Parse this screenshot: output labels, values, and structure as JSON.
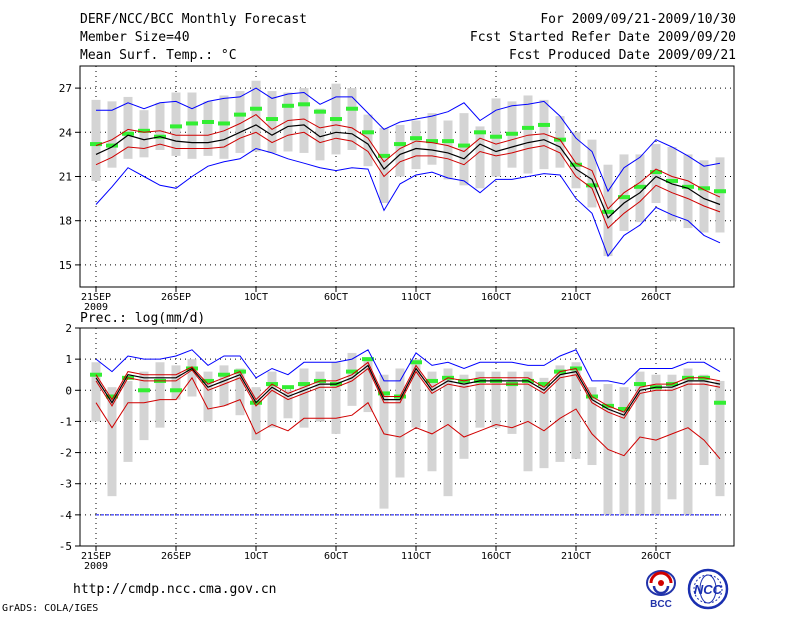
{
  "header": {
    "title": "DERF/NCC/BCC Monthly Forecast",
    "member_size": "Member Size=40",
    "variable": "Mean Surf. Temp.: °C",
    "period": "For 2009/09/21-2009/10/30",
    "started": "Fcst Started Refer Date 2009/09/20",
    "produced": "Fcst Produced Date 2009/09/21"
  },
  "footer": {
    "url": "http://cmdp.ncc.cma.gov.cn",
    "credit": "GrADS: COLA/IGES",
    "logo_bcc": "BCC",
    "logo_ncc": "NCC"
  },
  "colors": {
    "box": "#d4d4d4",
    "ensemble_mean": "#000000",
    "members_red": "#d00000",
    "extremes_blue": "#0000ff",
    "median_green": "#33ee33",
    "grid": "#000000"
  },
  "chart_data": [
    {
      "type": "line",
      "title": "Mean Surf. Temp.: °C",
      "ylabel": "Mean Surf. Temp.: °C",
      "ylim": [
        13.5,
        28.5
      ],
      "yticks": [
        15,
        18,
        21,
        24,
        27
      ],
      "x_days": 40,
      "xticks": [
        {
          "day": 0,
          "label": "21SEP",
          "sub": "2009"
        },
        {
          "day": 5,
          "label": "26SEP",
          "sub": ""
        },
        {
          "day": 10,
          "label": "1OCT",
          "sub": ""
        },
        {
          "day": 15,
          "label": "6OCT",
          "sub": ""
        },
        {
          "day": 20,
          "label": "11OCT",
          "sub": ""
        },
        {
          "day": 25,
          "label": "16OCT",
          "sub": ""
        },
        {
          "day": 30,
          "label": "21OCT",
          "sub": ""
        },
        {
          "day": 35,
          "label": "26OCT",
          "sub": ""
        }
      ],
      "series": [
        {
          "name": "ensemble mean",
          "values": [
            22.5,
            23.0,
            23.8,
            23.5,
            23.7,
            23.4,
            23.3,
            23.3,
            23.5,
            24.0,
            24.5,
            23.8,
            24.4,
            24.5,
            23.7,
            24.0,
            23.9,
            23.2,
            21.5,
            22.5,
            22.9,
            22.8,
            22.6,
            22.2,
            23.2,
            22.7,
            23.0,
            23.3,
            23.5,
            23.0,
            21.5,
            20.8,
            18.2,
            19.2,
            19.9,
            21.0,
            20.5,
            20.2,
            19.5,
            19.1
          ]
        },
        {
          "name": "member high",
          "values": [
            23.1,
            23.5,
            24.2,
            24.0,
            24.1,
            23.8,
            23.8,
            23.8,
            24.1,
            24.6,
            25.2,
            24.2,
            24.8,
            24.9,
            24.3,
            24.5,
            24.3,
            23.6,
            22.0,
            22.9,
            23.4,
            23.3,
            23.1,
            22.7,
            23.6,
            23.2,
            23.5,
            23.8,
            23.9,
            23.5,
            21.9,
            21.4,
            18.8,
            19.9,
            20.6,
            21.5,
            21.0,
            20.7,
            20.1,
            19.6
          ]
        },
        {
          "name": "member low",
          "values": [
            21.8,
            22.3,
            23.0,
            22.9,
            23.2,
            22.9,
            22.9,
            22.9,
            23.0,
            23.6,
            24.0,
            23.3,
            23.8,
            24.0,
            23.3,
            23.6,
            23.4,
            22.7,
            21.0,
            22.0,
            22.4,
            22.4,
            22.2,
            21.8,
            22.7,
            22.4,
            22.6,
            22.9,
            23.1,
            22.6,
            21.0,
            20.2,
            17.5,
            18.5,
            19.3,
            20.4,
            19.9,
            19.5,
            19.0,
            18.6
          ]
        },
        {
          "name": "max",
          "values": [
            25.5,
            25.5,
            26.0,
            25.6,
            26.0,
            26.1,
            25.6,
            26.1,
            26.3,
            26.4,
            27.0,
            26.3,
            26.6,
            26.7,
            25.9,
            26.4,
            26.4,
            25.3,
            24.2,
            24.7,
            24.9,
            25.1,
            25.4,
            26.0,
            24.8,
            25.5,
            25.8,
            25.9,
            26.1,
            25.1,
            23.6,
            22.7,
            20.0,
            21.6,
            22.3,
            23.5,
            23.0,
            22.4,
            21.7,
            21.9
          ]
        },
        {
          "name": "min",
          "values": [
            19.1,
            20.3,
            21.6,
            21.0,
            20.4,
            20.2,
            21.0,
            21.7,
            22.0,
            22.2,
            22.9,
            22.6,
            22.2,
            21.9,
            21.6,
            21.4,
            21.6,
            21.5,
            18.7,
            20.5,
            21.1,
            21.3,
            20.9,
            20.7,
            19.9,
            20.8,
            20.8,
            21.0,
            21.2,
            21.1,
            19.5,
            18.5,
            15.6,
            17.0,
            17.7,
            18.9,
            18.4,
            18.0,
            17.0,
            16.5
          ]
        },
        {
          "name": "median",
          "values": [
            23.2,
            23.1,
            23.9,
            24.1,
            23.7,
            24.4,
            24.6,
            24.7,
            24.6,
            25.2,
            25.6,
            24.9,
            25.8,
            25.9,
            25.4,
            24.9,
            25.6,
            24.0,
            22.4,
            23.2,
            23.6,
            23.4,
            23.4,
            23.1,
            24.0,
            23.7,
            23.9,
            24.3,
            24.5,
            23.5,
            21.8,
            20.4,
            18.6,
            19.6,
            20.3,
            21.3,
            20.7,
            20.3,
            20.2,
            20.0
          ]
        },
        {
          "name": "box high",
          "values": [
            26.2,
            26.1,
            26.4,
            25.5,
            26.0,
            26.7,
            26.7,
            26.1,
            26.5,
            26.8,
            27.5,
            26.8,
            26.7,
            27.0,
            25.6,
            27.3,
            27.0,
            25.2,
            24.3,
            24.5,
            24.8,
            25.3,
            24.8,
            25.3,
            24.4,
            26.3,
            26.1,
            26.5,
            26.2,
            25.1,
            24.0,
            23.5,
            21.8,
            22.5,
            22.5,
            23.2,
            23.0,
            22.5,
            22.1,
            22.3
          ]
        },
        {
          "name": "box low",
          "values": [
            20.7,
            21.6,
            22.2,
            22.3,
            22.8,
            22.4,
            22.2,
            22.4,
            22.2,
            22.6,
            22.7,
            22.6,
            22.7,
            22.6,
            22.1,
            22.5,
            22.8,
            21.7,
            19.2,
            21.0,
            21.5,
            21.8,
            20.8,
            20.4,
            20.2,
            21.0,
            21.6,
            21.2,
            21.5,
            21.6,
            20.2,
            18.9,
            15.6,
            17.3,
            17.9,
            19.2,
            18.0,
            17.5,
            17.2,
            17.2
          ]
        }
      ]
    },
    {
      "type": "line",
      "title": "Prec.: log(mm/d)",
      "ylabel": "Prec.: log(mm/d)",
      "ylim": [
        -5,
        2
      ],
      "yticks": [
        -5,
        -4,
        -3,
        -2,
        -1,
        0,
        1,
        2
      ],
      "x_days": 40,
      "reference_line": -4,
      "xticks": [
        {
          "day": 0,
          "label": "21SEP",
          "sub": "2009"
        },
        {
          "day": 5,
          "label": "26SEP",
          "sub": ""
        },
        {
          "day": 10,
          "label": "1OCT",
          "sub": ""
        },
        {
          "day": 15,
          "label": "6OCT",
          "sub": ""
        },
        {
          "day": 20,
          "label": "11OCT",
          "sub": ""
        },
        {
          "day": 25,
          "label": "16OCT",
          "sub": ""
        },
        {
          "day": 30,
          "label": "21OCT",
          "sub": ""
        },
        {
          "day": 35,
          "label": "26OCT",
          "sub": ""
        }
      ],
      "series": [
        {
          "name": "ensemble mean",
          "values": [
            0.4,
            -0.4,
            0.5,
            0.4,
            0.4,
            0.4,
            0.7,
            0.1,
            0.3,
            0.5,
            -0.4,
            0.1,
            -0.2,
            0.0,
            0.2,
            0.2,
            0.4,
            0.8,
            -0.3,
            -0.3,
            0.7,
            0.0,
            0.3,
            0.2,
            0.3,
            0.3,
            0.3,
            0.3,
            0.0,
            0.5,
            0.6,
            -0.3,
            -0.6,
            -0.8,
            0.0,
            0.1,
            0.1,
            0.3,
            0.3,
            0.2
          ]
        },
        {
          "name": "member high",
          "values": [
            0.5,
            -0.3,
            0.6,
            0.5,
            0.5,
            0.5,
            0.75,
            0.2,
            0.4,
            0.6,
            -0.3,
            0.2,
            -0.1,
            0.1,
            0.3,
            0.3,
            0.5,
            0.9,
            -0.2,
            -0.2,
            0.8,
            0.1,
            0.4,
            0.3,
            0.4,
            0.4,
            0.4,
            0.4,
            0.1,
            0.6,
            0.7,
            -0.2,
            -0.5,
            -0.7,
            0.1,
            0.2,
            0.2,
            0.4,
            0.4,
            0.3
          ]
        },
        {
          "name": "member low",
          "values": [
            0.3,
            -0.5,
            0.4,
            0.3,
            0.3,
            0.3,
            0.65,
            0.0,
            0.2,
            0.4,
            -0.5,
            0.0,
            -0.3,
            -0.1,
            0.1,
            0.1,
            0.3,
            0.7,
            -0.4,
            -0.4,
            0.6,
            -0.1,
            0.2,
            0.1,
            0.2,
            0.2,
            0.2,
            0.2,
            -0.1,
            0.4,
            0.5,
            -0.4,
            -0.7,
            -0.9,
            -0.1,
            0.0,
            0.0,
            0.2,
            0.2,
            0.1
          ]
        },
        {
          "name": "max",
          "values": [
            1.0,
            0.6,
            1.1,
            1.0,
            1.0,
            1.1,
            1.3,
            0.8,
            1.1,
            1.1,
            0.4,
            0.7,
            0.5,
            0.9,
            0.9,
            0.9,
            1.0,
            1.3,
            0.3,
            0.3,
            1.2,
            0.8,
            0.9,
            0.7,
            0.9,
            0.9,
            0.9,
            0.8,
            0.8,
            1.1,
            1.3,
            0.3,
            0.3,
            0.2,
            0.7,
            0.7,
            0.7,
            0.9,
            0.9,
            0.6
          ]
        },
        {
          "name": "min",
          "values": [
            -0.4,
            -1.2,
            -0.4,
            -0.4,
            -0.3,
            -0.3,
            0.4,
            -0.6,
            -0.5,
            -0.3,
            -1.4,
            -1.1,
            -1.3,
            -0.9,
            -0.9,
            -0.9,
            -0.8,
            -0.4,
            -1.4,
            -1.5,
            -1.2,
            -1.4,
            -1.1,
            -1.5,
            -1.3,
            -1.1,
            -1.2,
            -1.0,
            -1.3,
            -0.9,
            -0.6,
            -1.4,
            -1.9,
            -2.1,
            -1.5,
            -1.6,
            -1.4,
            -1.2,
            -1.6,
            -2.2
          ]
        },
        {
          "name": "median",
          "values": [
            0.5,
            -0.2,
            0.4,
            0.0,
            0.3,
            0.0,
            0.7,
            0.3,
            0.5,
            0.6,
            -0.4,
            0.2,
            0.1,
            0.2,
            0.3,
            0.2,
            0.6,
            1.0,
            -0.1,
            -0.2,
            0.9,
            0.3,
            0.4,
            0.3,
            0.3,
            0.3,
            0.2,
            0.3,
            0.2,
            0.6,
            0.7,
            -0.2,
            -0.5,
            -0.6,
            0.2,
            0.1,
            0.2,
            0.4,
            0.4,
            -0.4
          ]
        },
        {
          "name": "box high",
          "values": [
            0.9,
            0.1,
            0.3,
            0.6,
            0.9,
            0.8,
            1.0,
            0.6,
            0.8,
            0.7,
            0.1,
            0.6,
            0.0,
            0.7,
            0.6,
            0.9,
            1.2,
            1.0,
            0.5,
            0.7,
            1.0,
            0.6,
            0.7,
            0.5,
            0.6,
            0.6,
            0.6,
            0.6,
            0.4,
            0.8,
            0.9,
            0.1,
            0.2,
            0.1,
            0.6,
            0.5,
            0.5,
            0.7,
            0.5,
            0.3
          ]
        },
        {
          "name": "box low",
          "values": [
            -1.0,
            -3.4,
            -2.3,
            -1.6,
            -1.2,
            -0.3,
            -0.2,
            -1.0,
            -0.5,
            -0.8,
            -1.6,
            -1.2,
            -0.9,
            -1.2,
            -1.0,
            -1.4,
            -0.5,
            -0.7,
            -3.8,
            -2.8,
            -1.2,
            -2.6,
            -3.4,
            -2.2,
            -1.2,
            -1.2,
            -1.4,
            -2.6,
            -2.5,
            -2.3,
            -2.2,
            -2.4,
            -4.0,
            -4.0,
            -4.0,
            -4.0,
            -3.5,
            -4.0,
            -2.4,
            -3.4
          ]
        }
      ]
    }
  ]
}
